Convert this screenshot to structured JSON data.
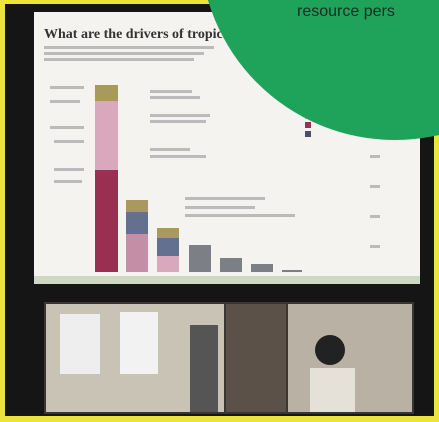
{
  "slide": {
    "title": "What are the drivers of tropical c"
  },
  "overlay": {
    "caption": "resource pers"
  }
}
